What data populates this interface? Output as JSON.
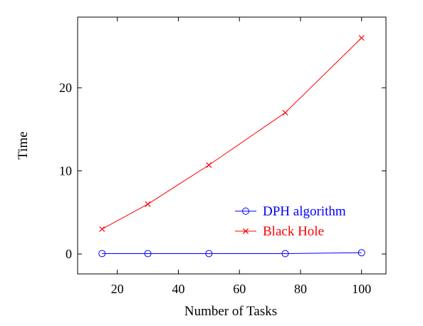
{
  "chart_data": {
    "type": "line",
    "xlabel": "Number of Tasks",
    "ylabel": "Time",
    "xlim": [
      7,
      108
    ],
    "ylim": [
      -2.4,
      28.5
    ],
    "xticks": [
      20,
      40,
      60,
      80,
      100
    ],
    "yticks": [
      0,
      10,
      20
    ],
    "legend_position": "right",
    "series": [
      {
        "name": "DPH algorithm",
        "color": "#0000ff",
        "marker": "circle",
        "x": [
          15,
          30,
          50,
          75,
          100
        ],
        "y": [
          0.05,
          0.05,
          0.05,
          0.05,
          0.15
        ]
      },
      {
        "name": "Black Hole",
        "color": "#ff0000",
        "marker": "cross",
        "x": [
          15,
          30,
          50,
          75,
          100
        ],
        "y": [
          3.0,
          6.0,
          10.7,
          17.0,
          26.0
        ]
      }
    ]
  }
}
